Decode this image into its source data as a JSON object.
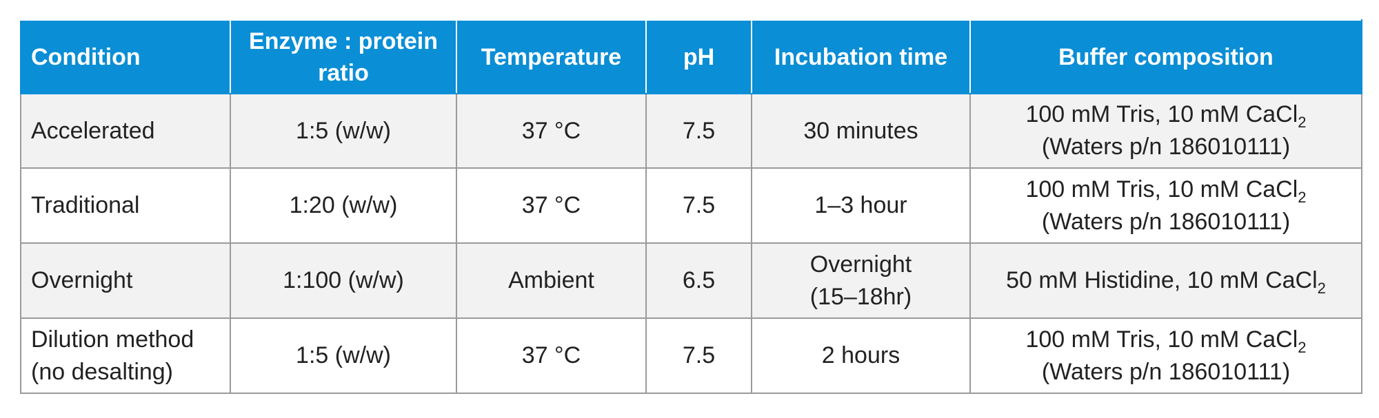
{
  "headers": [
    "Condition",
    "Enzyme : protein ratio",
    "Temperature",
    "pH",
    "Incubation time",
    "Buffer composition"
  ],
  "rows": [
    {
      "condition": "Accelerated",
      "ratio": "1:5 (w/w)",
      "temperature": "37 °C",
      "ph": "7.5",
      "incubation": "30 minutes",
      "buffer_line1": "100 mM Tris, 10 mM CaCl",
      "buffer_sub": "2",
      "buffer_line2": "(Waters p/n 186010111)"
    },
    {
      "condition": "Traditional",
      "ratio": "1:20 (w/w)",
      "temperature": "37 °C",
      "ph": "7.5",
      "incubation": "1–3 hour",
      "buffer_line1": "100 mM Tris, 10 mM CaCl",
      "buffer_sub": "2",
      "buffer_line2": "(Waters p/n 186010111)"
    },
    {
      "condition": "Overnight",
      "ratio": "1:100 (w/w)",
      "temperature": "Ambient",
      "ph": "6.5",
      "incubation_line1": "Overnight",
      "incubation_line2": "(15–18hr)",
      "buffer_line1": "50 mM Histidine, 10 mM CaCl",
      "buffer_sub": "2"
    },
    {
      "condition_line1": "Dilution method",
      "condition_line2": "(no desalting)",
      "ratio": "1:5 (w/w)",
      "temperature": "37 °C",
      "ph": "7.5",
      "incubation": "2 hours",
      "buffer_line1": "100 mM Tris, 10 mM CaCl",
      "buffer_sub": "2",
      "buffer_line2": "(Waters p/n 186010111)"
    }
  ]
}
